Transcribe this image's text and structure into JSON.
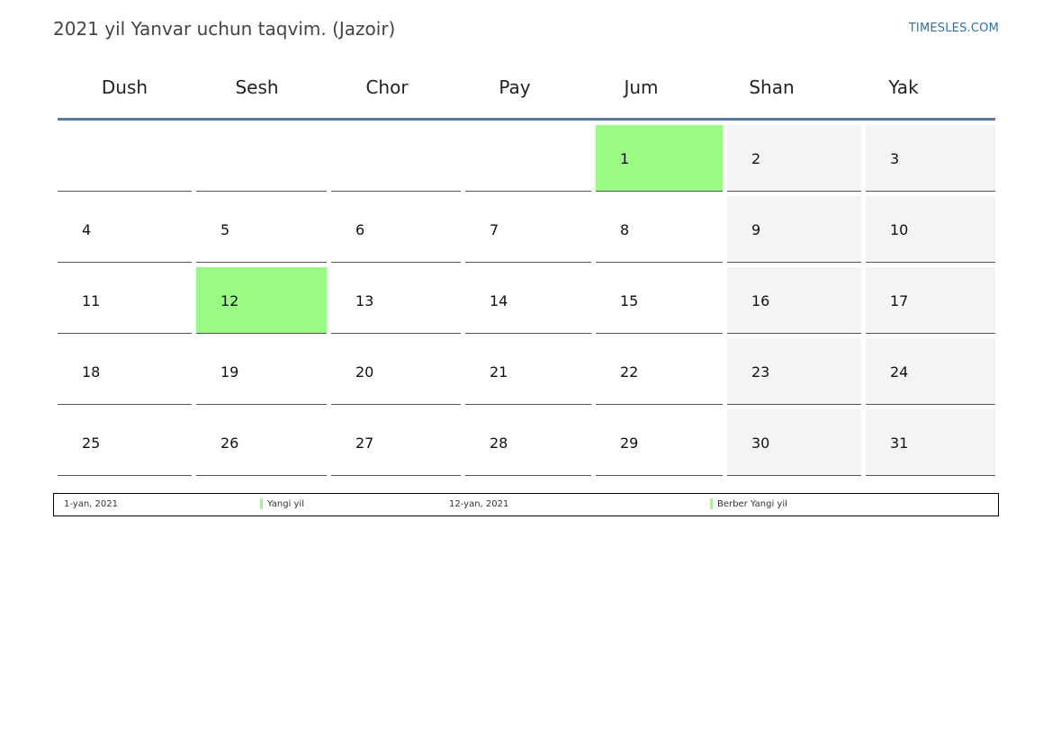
{
  "header": {
    "title": "2021 yil Yanvar uchun taqvim. (Jazoir)",
    "brand": "TIMESLES.COM"
  },
  "calendar": {
    "weekdays": [
      "Dush",
      "Sesh",
      "Chor",
      "Pay",
      "Jum",
      "Shan",
      "Yak"
    ],
    "weeks": [
      [
        "",
        "",
        "",
        "",
        "1",
        "2",
        "3"
      ],
      [
        "4",
        "5",
        "6",
        "7",
        "8",
        "9",
        "10"
      ],
      [
        "11",
        "12",
        "13",
        "14",
        "15",
        "16",
        "17"
      ],
      [
        "18",
        "19",
        "20",
        "21",
        "22",
        "23",
        "24"
      ],
      [
        "25",
        "26",
        "27",
        "28",
        "29",
        "30",
        "31"
      ]
    ],
    "holidays": [
      "1",
      "12"
    ],
    "holiday_color": "#99fb86",
    "weekend_color": "#f4f4f4"
  },
  "legend": [
    {
      "date": "1-yan, 2021",
      "name": "Yangi yil"
    },
    {
      "date": "12-yan, 2021",
      "name": "Berber Yangi yil"
    }
  ]
}
